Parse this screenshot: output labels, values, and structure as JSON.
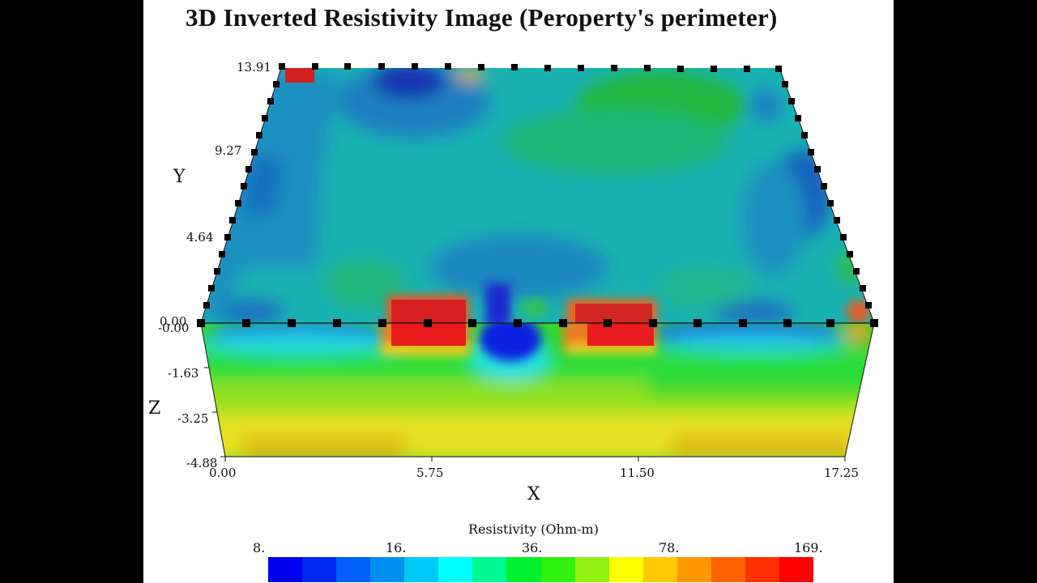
{
  "chart_data": {
    "type": "heatmap",
    "subtype": "3d-volume-resistivity-tomography",
    "title": "3D Inverted Resistivity Image (Peroperty's perimeter)",
    "xlabel": "X",
    "ylabel": "Y",
    "zlabel": "Z",
    "x_ticks": [
      "0.00",
      "5.75",
      "11.50",
      "17.25"
    ],
    "y_ticks": [
      "0.00",
      "4.64",
      "9.27",
      "13.91"
    ],
    "z_ticks": [
      "-0.00",
      "-1.63",
      "-3.25",
      "-4.88"
    ],
    "xlim": [
      0,
      17.25
    ],
    "ylim": [
      0,
      13.91
    ],
    "zlim": [
      -4.88,
      0
    ],
    "colorbar": {
      "title": "Resistivity (Ohm-m)",
      "tick_labels": [
        "8.",
        "16.",
        "36.",
        "78.",
        "169."
      ],
      "scale": "log",
      "range": [
        8,
        169
      ],
      "colors": [
        "#0000f0",
        "#0028f0",
        "#0060f8",
        "#0090f0",
        "#00c8f8",
        "#00ffff",
        "#00f890",
        "#00f030",
        "#30f010",
        "#90f010",
        "#ffff00",
        "#ffc800",
        "#ff9800",
        "#ff6400",
        "#ff3000",
        "#ff0000"
      ]
    },
    "features": [
      {
        "label": "high-resistivity anomaly",
        "x_range": [
          4.1,
          6.9
        ],
        "face": "front/top",
        "value_approx": 169
      },
      {
        "label": "high-resistivity anomaly",
        "x_range": [
          8.8,
          11.6
        ],
        "face": "front/top",
        "value_approx": 169
      },
      {
        "label": "low-resistivity anomaly",
        "x_range": [
          7.0,
          8.6
        ],
        "face": "front/top",
        "value_approx": 8
      },
      {
        "label": "high-resistivity corner",
        "x_range": [
          0,
          0.8
        ],
        "y_range": [
          13.2,
          13.91
        ],
        "face": "top",
        "value_approx": 150
      },
      {
        "label": "low-resistivity zone",
        "x_range": [
          3.5,
          5.5
        ],
        "y_range": [
          10.5,
          13.91
        ],
        "face": "top",
        "value_approx": 10
      }
    ],
    "electrodes": {
      "front_row_count": 16,
      "back_row_count": 16,
      "side_rows_count": 15
    }
  }
}
